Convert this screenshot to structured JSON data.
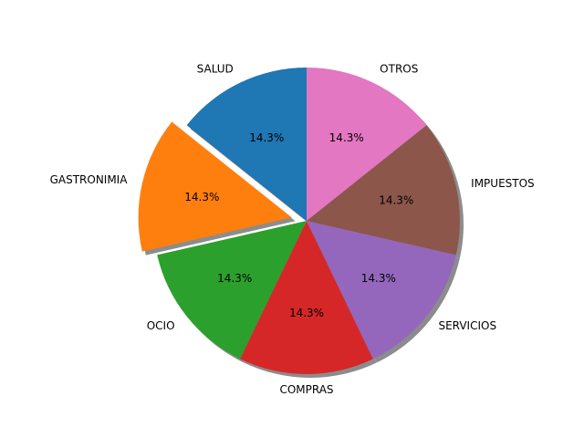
{
  "chart_data": {
    "type": "pie",
    "categories": [
      "SALUD",
      "GASTRONIMIA",
      "OCIO",
      "COMPRAS",
      "SERVICIOS",
      "IMPUESTOS",
      "OTROS"
    ],
    "values": [
      14.3,
      14.3,
      14.3,
      14.3,
      14.3,
      14.3,
      14.3
    ],
    "value_labels": [
      "14.3%",
      "14.3%",
      "14.3%",
      "14.3%",
      "14.3%",
      "14.3%",
      "14.3%"
    ],
    "colors": [
      "#1f77b4",
      "#ff7f0e",
      "#2ca02c",
      "#d62728",
      "#9467bd",
      "#8c564b",
      "#e377c2"
    ],
    "exploded": [
      "GASTRONIMIA"
    ],
    "shadow": true,
    "start_angle_deg": 90,
    "direction": "counterclockwise"
  }
}
